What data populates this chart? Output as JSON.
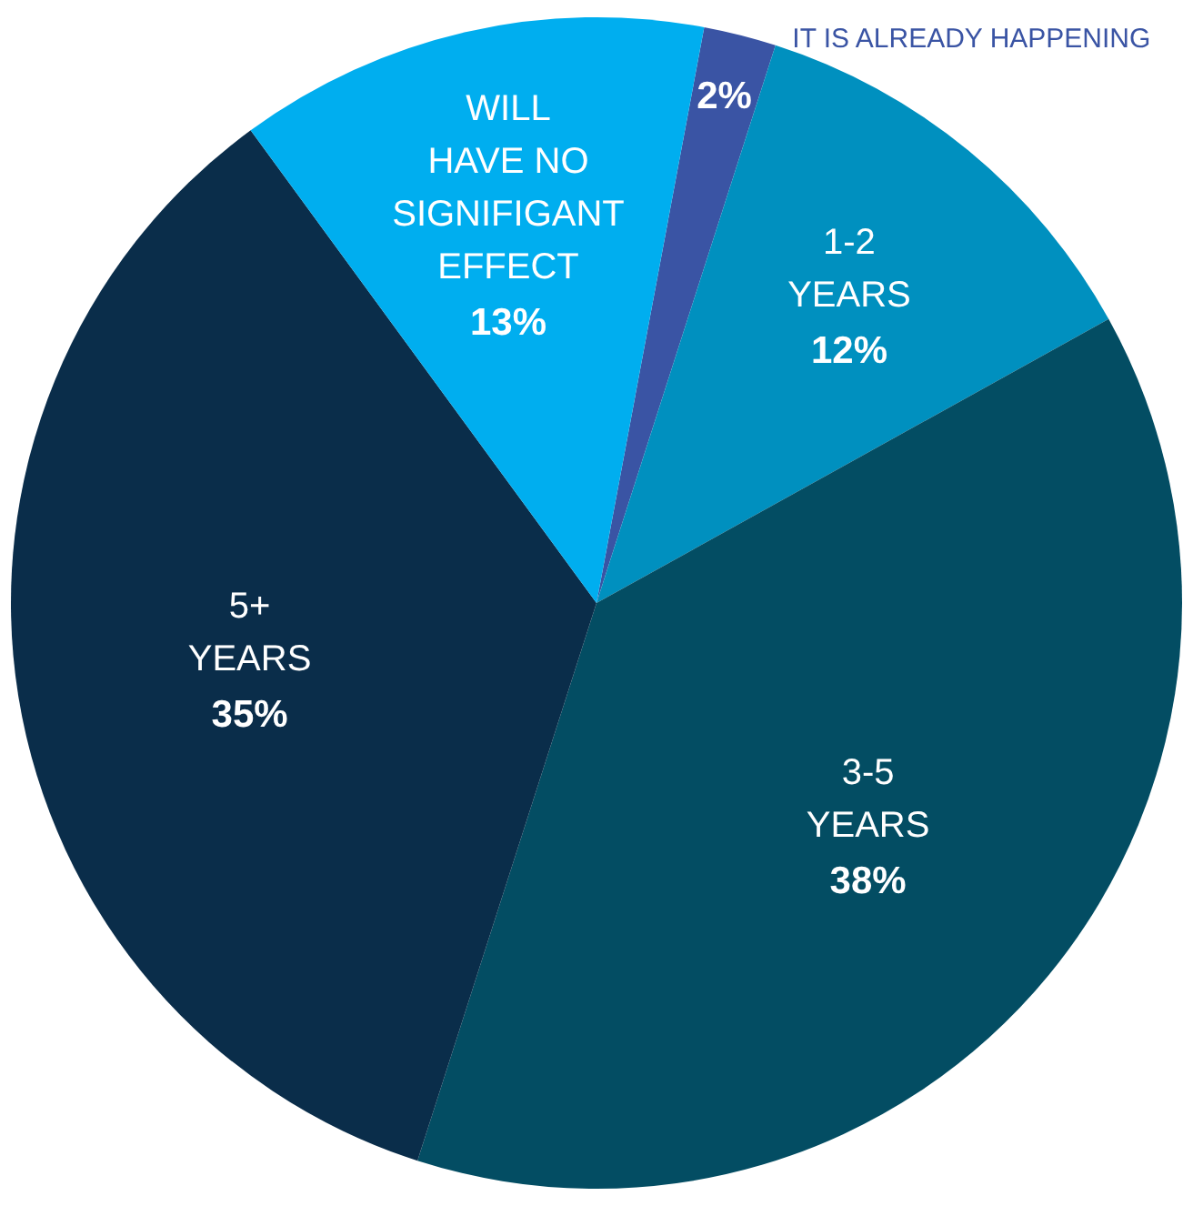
{
  "chart_data": {
    "type": "pie",
    "categories": [
      "IT IS ALREADY HAPPENING",
      "1-2\nYEARS",
      "3-5\nYEARS",
      "5+\nYEARS",
      "WILL\nHAVE NO\nSIGNIFIGANT\nEFFECT"
    ],
    "values": [
      2,
      12,
      38,
      35,
      13
    ],
    "colors": [
      "#3a54a4",
      "#0090bf",
      "#034d63",
      "#0a2d4a",
      "#00aeef"
    ],
    "value_labels": [
      "2%",
      "12%",
      "38%",
      "35%",
      "13%"
    ],
    "legend": false
  }
}
